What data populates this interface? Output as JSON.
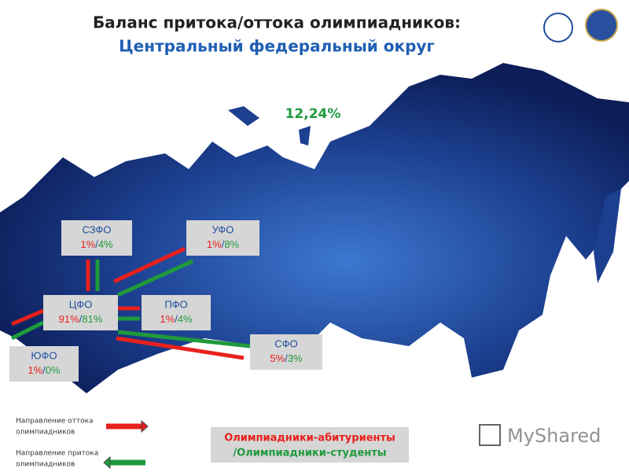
{
  "header": {
    "title": "Баланс притока/оттока олимпиадников:",
    "subtitle": "Центральный федеральный округ"
  },
  "total": "12,24%",
  "separator": "/",
  "districts": [
    {
      "name": "СЗФО",
      "out": "1%",
      "in": "4%"
    },
    {
      "name": "УФО",
      "out": "1%",
      "in": "8%"
    },
    {
      "name": "ЦФО",
      "out": "91%",
      "in": "81%"
    },
    {
      "name": "ПФО",
      "out": "1%",
      "in": "4%"
    },
    {
      "name": "ЮФО",
      "out": "1%",
      "in": "0%"
    },
    {
      "name": "СФО",
      "out": "5%",
      "in": "3%"
    }
  ],
  "legend": {
    "outflow": [
      "Направление оттока",
      "олимпиадников"
    ],
    "inflow": [
      "Направление притока",
      "олимпиадников"
    ]
  },
  "note": {
    "line1": "Олимпиадники-абитуриенты",
    "line2": "/Олимпиадники-студенты"
  },
  "watermark": "MyShared"
}
